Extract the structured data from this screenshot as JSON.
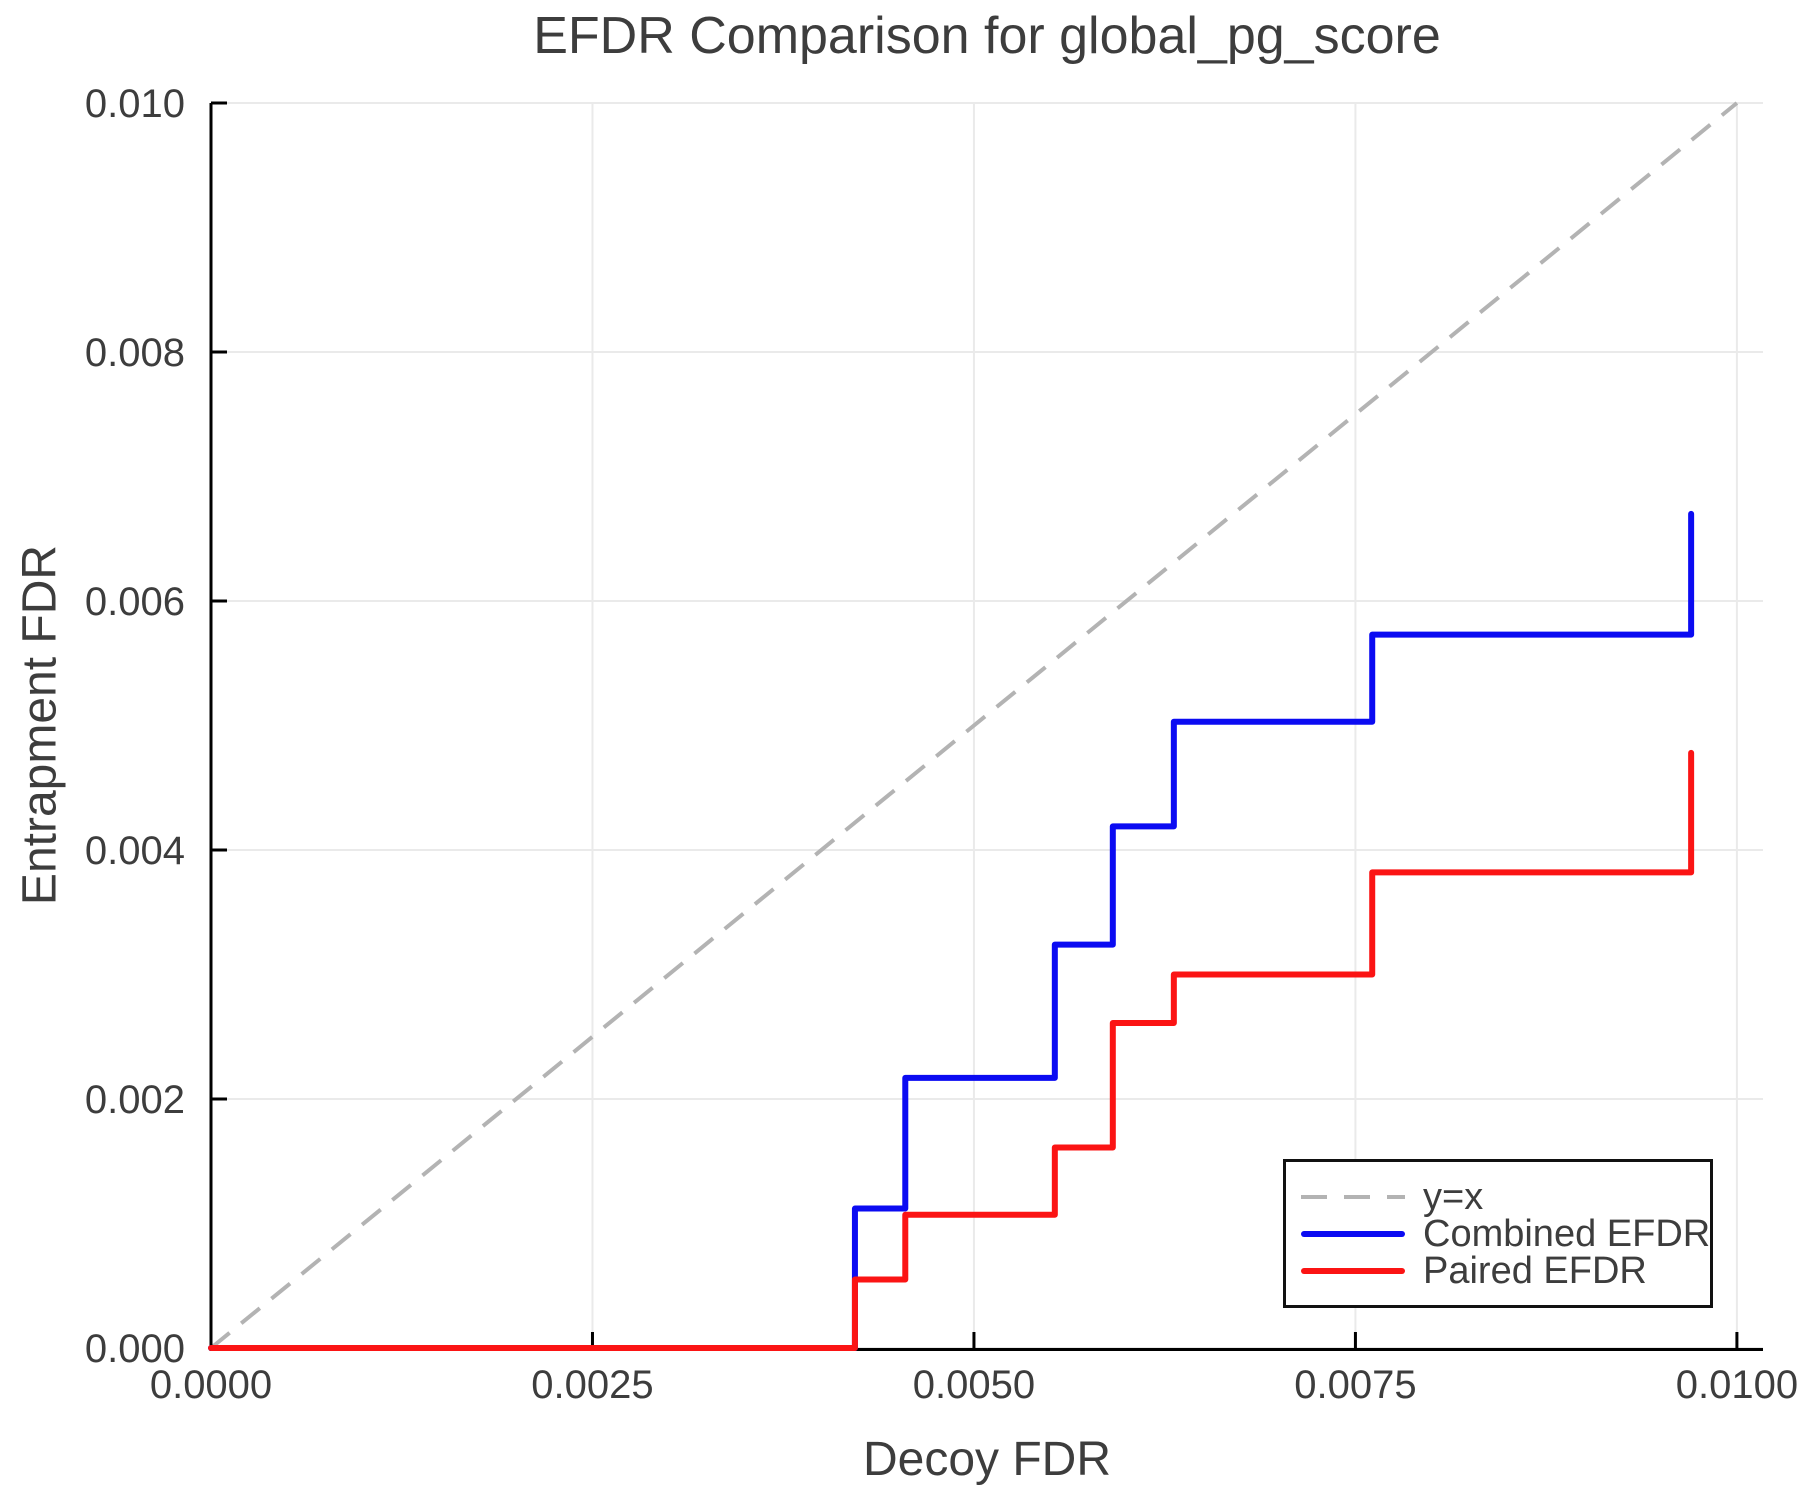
{
  "chart_data": {
    "type": "line",
    "subtype": "step-post",
    "title": "EFDR Comparison for global_pg_score",
    "xlabel": "Decoy FDR",
    "ylabel": "Entrapment FDR",
    "xlim": [
      0,
      0.010171
    ],
    "ylim": [
      0,
      0.01
    ],
    "grid": true,
    "legend_position": "lower right",
    "x_ticks": {
      "values": [
        0,
        0.0025,
        0.005,
        0.0075,
        0.01
      ],
      "labels": [
        "0.0000",
        "0.0025",
        "0.0050",
        "0.0075",
        "0.0100"
      ]
    },
    "y_ticks": {
      "values": [
        0,
        0.002,
        0.004,
        0.006,
        0.008,
        0.01
      ],
      "labels": [
        "0.000",
        "0.002",
        "0.004",
        "0.006",
        "0.008",
        "0.010"
      ]
    },
    "reference_line": {
      "label": "y=x",
      "style": "dashed",
      "color": "#b3b3b3",
      "from": [
        0,
        0
      ],
      "to": [
        0.01,
        0.01
      ]
    },
    "series": [
      {
        "name": "Combined EFDR",
        "color": "#0b0bf2",
        "x": [
          0,
          0.00422,
          0.00455,
          0.00553,
          0.00591,
          0.00631,
          0.00761,
          0.0097
        ],
        "y": [
          0,
          0.00112,
          0.00217,
          0.00324,
          0.00419,
          0.00503,
          0.00573,
          0.0067
        ]
      },
      {
        "name": "Paired EFDR",
        "color": "#fb1414",
        "x": [
          0,
          0.00422,
          0.00455,
          0.00553,
          0.00591,
          0.00631,
          0.00761,
          0.0097
        ],
        "y": [
          0,
          0.00055,
          0.00107,
          0.00161,
          0.00261,
          0.003,
          0.00382,
          0.00478
        ]
      }
    ],
    "colors": {
      "grid": "#eaeaea",
      "spine": "#000000",
      "tick": "#000000",
      "text": "#3d3d3d",
      "background": "#ffffff"
    }
  }
}
